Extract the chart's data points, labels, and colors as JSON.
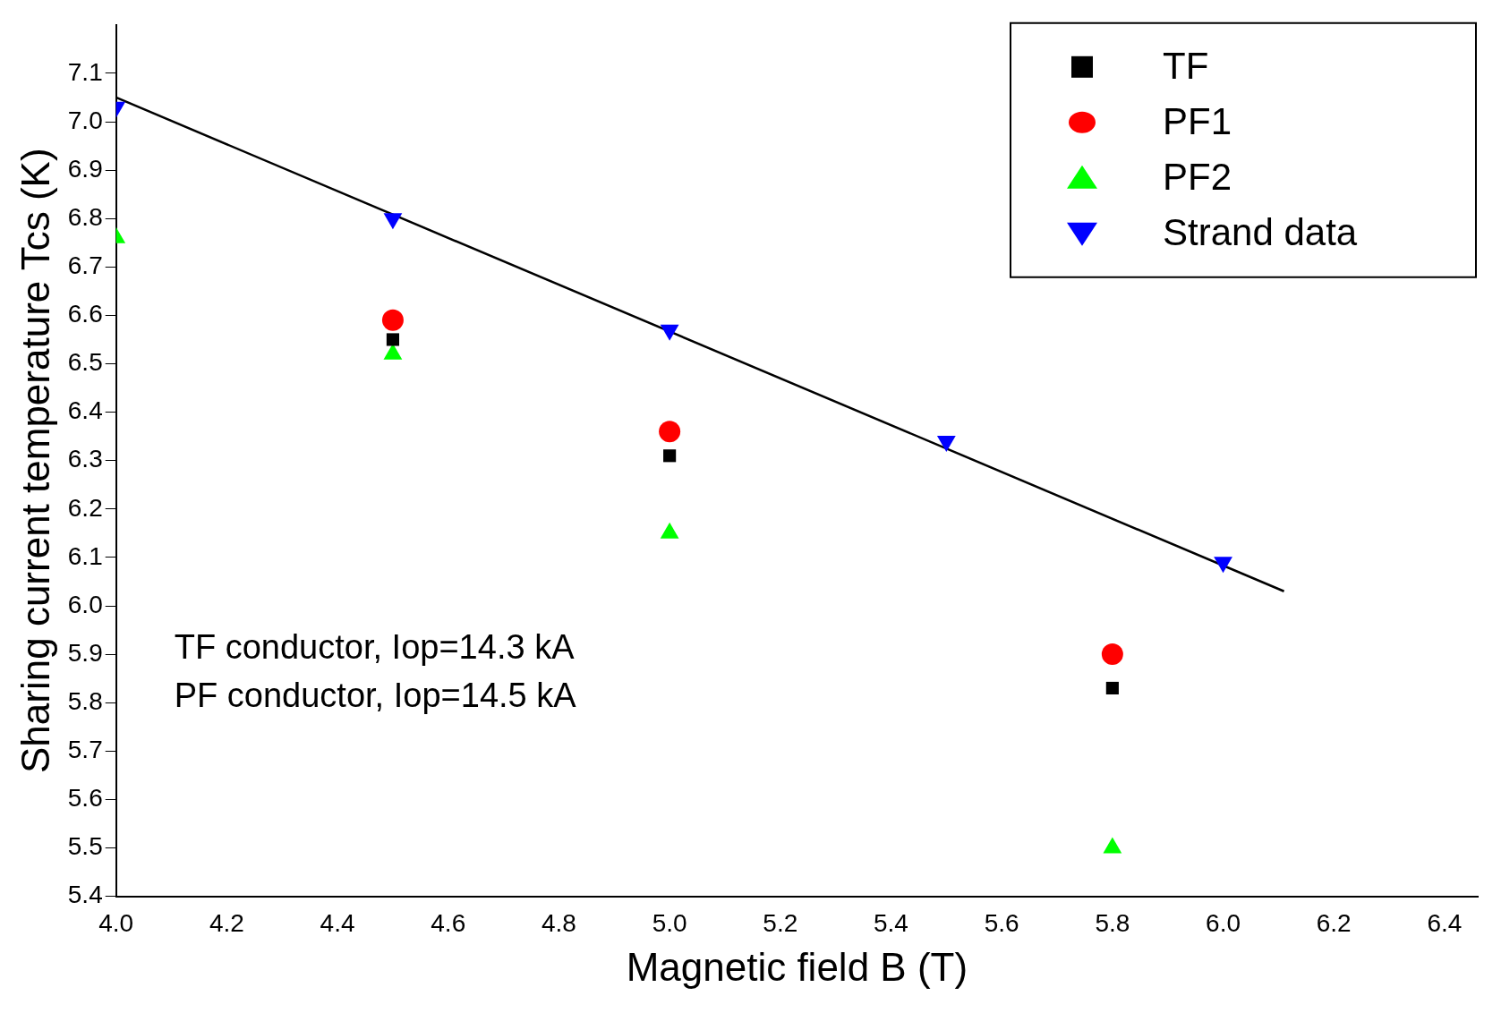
{
  "chart_data": {
    "type": "scatter",
    "xlabel": "Magnetic field B (T)",
    "ylabel": "Sharing current temperature Tcs (K)",
    "xlim": [
      4.0,
      6.46
    ],
    "xticks": [
      {
        "value": 4,
        "label": "4.0"
      },
      4.2,
      4.4,
      4.6,
      4.8,
      {
        "value": 5,
        "label": "5.0"
      },
      5.2,
      5.4,
      5.6,
      5.8,
      {
        "value": 6,
        "label": "6.0"
      },
      6.2,
      6.4
    ],
    "ylim": [
      5.4,
      7.2
    ],
    "yticks": [
      5.4,
      5.5,
      5.6,
      5.7,
      5.8,
      5.9,
      {
        "value": 6,
        "label": "6.0"
      },
      6.1,
      6.2,
      6.3,
      6.4,
      6.5,
      6.6,
      6.7,
      6.8,
      6.9,
      {
        "value": 7,
        "label": "7.0"
      },
      7.1
    ],
    "grid": false,
    "legend": "top right",
    "annotations": [
      "TF conductor, Iop=14.3 kA",
      "PF conductor, Iop=14.5 kA"
    ],
    "series": [
      {
        "name": "TF",
        "color": "#000000",
        "marker": "square",
        "x": [
          4.5,
          5.0,
          5.8
        ],
        "values": [
          6.55,
          6.31,
          5.83
        ]
      },
      {
        "name": "PF1",
        "color": "#ff0000",
        "marker": "circle",
        "x": [
          4.5,
          5.0,
          5.8
        ],
        "values": [
          6.59,
          6.36,
          5.9
        ]
      },
      {
        "name": "PF2",
        "color": "#00ff00",
        "marker": "triangle",
        "x": [
          4.0,
          4.5,
          5.0,
          5.8
        ],
        "values": [
          6.76,
          6.52,
          6.15,
          5.5
        ]
      },
      {
        "name": "Strand data",
        "color": "#0000ff",
        "marker": "triangle_down",
        "x": [
          4.0,
          4.5,
          5.0,
          5.5,
          6.0
        ],
        "values": [
          7.03,
          6.8,
          6.57,
          6.34,
          6.09
        ]
      },
      {
        "type": "line",
        "color": "#000000",
        "marker": "none",
        "line_style": "solid",
        "x": [
          4.0,
          6.11
        ],
        "values": [
          7.05,
          6.03
        ]
      }
    ]
  }
}
